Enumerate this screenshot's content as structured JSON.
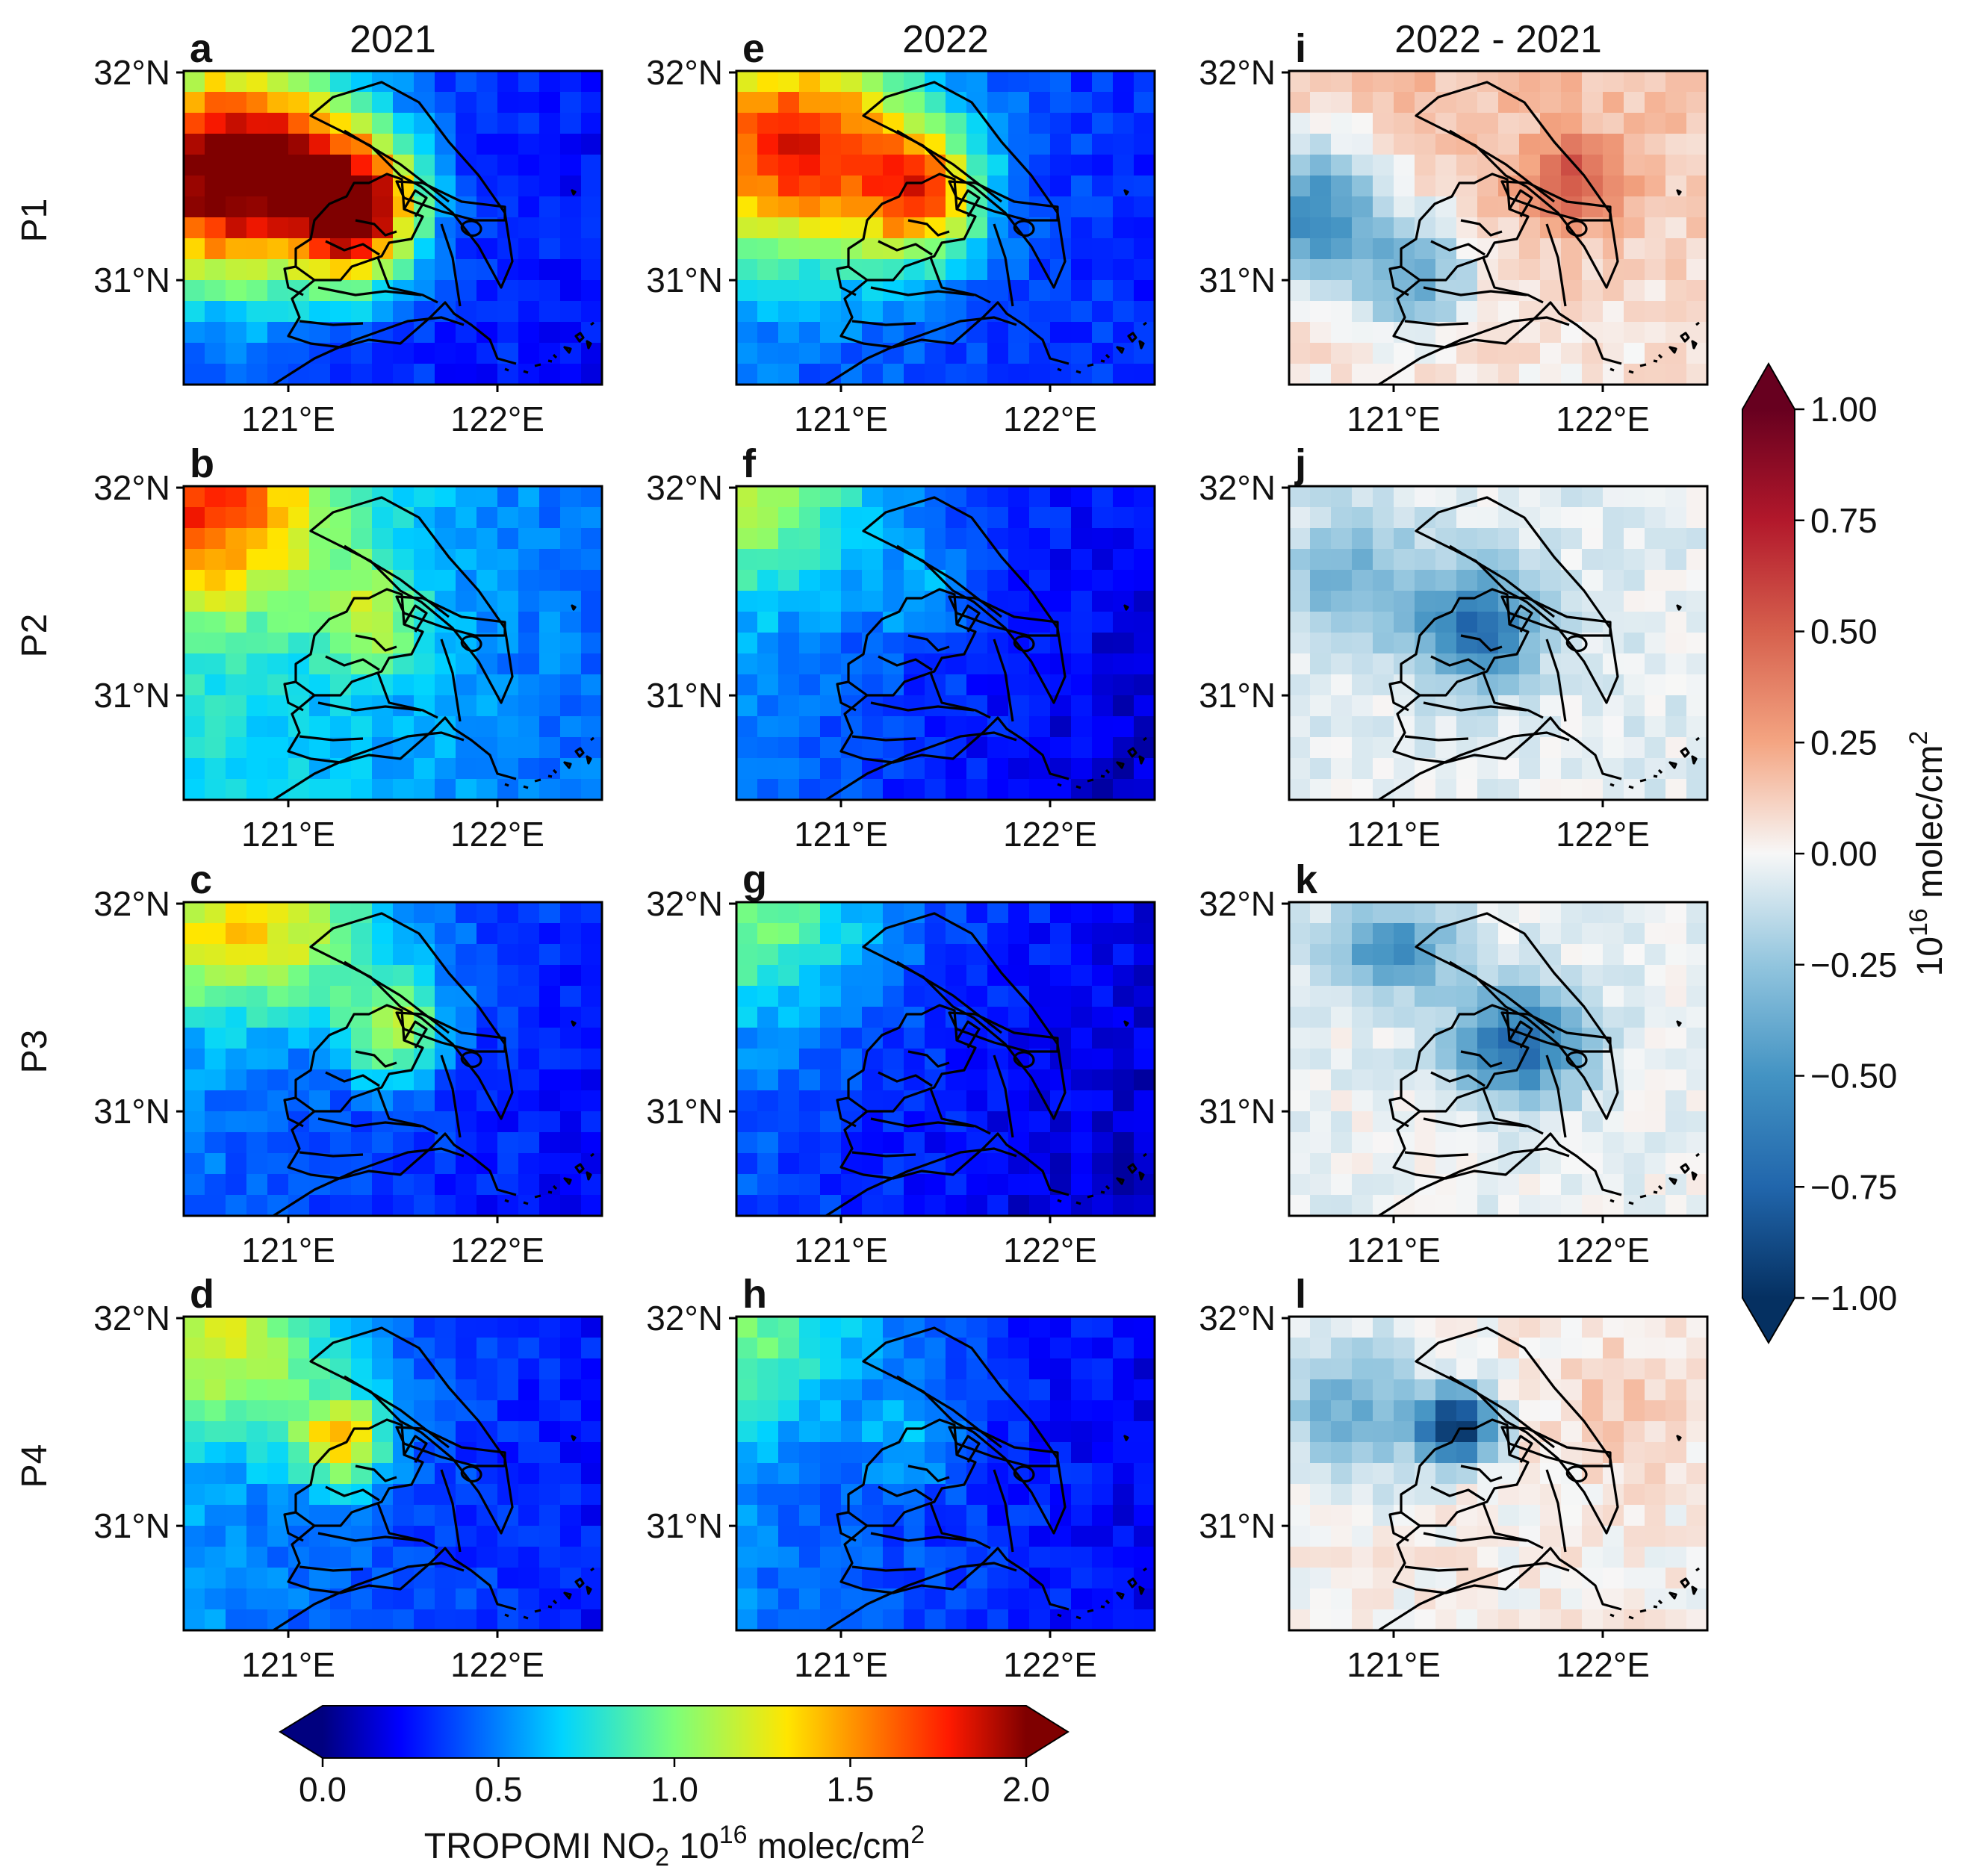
{
  "figure": {
    "columns": [
      {
        "id": "y2021",
        "title": "2021",
        "kind": "no2",
        "panels": [
          "a",
          "b",
          "c",
          "d"
        ]
      },
      {
        "id": "y2022",
        "title": "2022",
        "kind": "no2",
        "panels": [
          "e",
          "f",
          "g",
          "h"
        ]
      },
      {
        "id": "diff",
        "title": "2022 - 2021",
        "kind": "diff",
        "panels": [
          "i",
          "j",
          "k",
          "l"
        ]
      }
    ],
    "rows": [
      "P1",
      "P2",
      "P3",
      "P4"
    ],
    "axes": {
      "lat_ticks": [
        "32°N",
        "31°N"
      ],
      "lon_ticks": [
        "121°E",
        "122°E"
      ],
      "lon_range": [
        120.5,
        122.5
      ],
      "lat_range": [
        30.5,
        32.0
      ]
    },
    "no2_colorbar": {
      "colormap": "jet",
      "ticks": [
        "0.0",
        "0.5",
        "1.0",
        "1.5",
        "2.0"
      ],
      "range": [
        0.0,
        2.0
      ],
      "extend": "both",
      "label_main": "TROPOMI NO",
      "label_sub": "2",
      "label_base": " 10",
      "label_exp": "16",
      "label_unit": " molec/cm",
      "label_exp2": "2"
    },
    "diff_colorbar": {
      "colormap": "RdBu_r",
      "ticks": [
        "1.00",
        "0.75",
        "0.50",
        "0.25",
        "0.00",
        "−0.25",
        "−0.50",
        "−0.75",
        "−1.00"
      ],
      "range": [
        -1.0,
        1.0
      ],
      "extend": "both",
      "label_base": "10",
      "label_exp": "16",
      "label_unit": " molec/cm",
      "label_exp2": "2"
    },
    "colors": {
      "boundary": "#000000",
      "frame": "#000000"
    }
  }
}
